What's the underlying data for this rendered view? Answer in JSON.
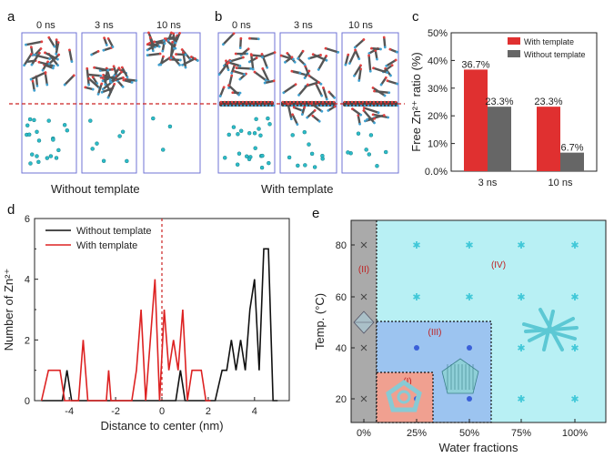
{
  "panel_a": {
    "label": "a",
    "times": [
      "0 ns",
      "3 ns",
      "10 ns"
    ],
    "caption": "Without template"
  },
  "panel_b": {
    "label": "b",
    "times": [
      "0 ns",
      "3 ns",
      "10 ns"
    ],
    "caption": "With template"
  },
  "panel_c": {
    "label": "c"
  },
  "panel_d": {
    "label": "d"
  },
  "panel_e": {
    "label": "e"
  },
  "chart_data": [
    {
      "id": "c",
      "type": "bar",
      "categories": [
        "3 ns",
        "10 ns"
      ],
      "series": [
        {
          "name": "With template",
          "color": "#e03030",
          "values": [
            36.7,
            23.3
          ],
          "labels": [
            "36.7%",
            "23.3%"
          ]
        },
        {
          "name": "Without template",
          "color": "#666666",
          "values": [
            23.3,
            6.7
          ],
          "labels": [
            "23.3%",
            "6.7%"
          ]
        }
      ],
      "ylabel": "Free Zn²⁺ ratio (%)",
      "ylim": [
        0,
        50
      ],
      "yticks": [
        "0.0%",
        "10%",
        "20%",
        "30%",
        "40%",
        "50%"
      ],
      "legend": "top-right"
    },
    {
      "id": "d",
      "type": "line",
      "xlabel": "Distance to center (nm)",
      "ylabel": "Number of Zn²⁺",
      "xlim": [
        -5.5,
        5.5
      ],
      "ylim": [
        0,
        6
      ],
      "xticks": [
        -4,
        -2,
        0,
        2,
        4
      ],
      "yticks": [
        0,
        2,
        4,
        6
      ],
      "legend": "top-left",
      "series": [
        {
          "name": "Without template",
          "color": "#111111",
          "x": [
            -5.2,
            -4.3,
            -4.1,
            -3.9,
            0.6,
            0.8,
            1.0,
            1.2,
            2.3,
            2.6,
            2.8,
            3.0,
            3.2,
            3.4,
            3.6,
            3.8,
            4.0,
            4.2,
            4.4,
            4.6,
            4.8,
            5.0
          ],
          "y": [
            0,
            0,
            1,
            0,
            0,
            1,
            0,
            0,
            0,
            1,
            1,
            2,
            1,
            2,
            1,
            3,
            4,
            1,
            5,
            5,
            0,
            0
          ]
        },
        {
          "name": "With template",
          "color": "#dd2222",
          "x": [
            -5.2,
            -4.9,
            -4.4,
            -4.2,
            -3.6,
            -3.4,
            -3.2,
            -2.4,
            -2.3,
            -2.2,
            -1.3,
            -1.1,
            -0.9,
            -0.7,
            -0.5,
            -0.3,
            -0.1,
            0.1,
            0.3,
            0.5,
            0.7,
            0.9,
            1.1,
            1.3,
            1.7,
            1.9,
            2.1
          ],
          "y": [
            0,
            1,
            1,
            0,
            0,
            2,
            0,
            0,
            1,
            0,
            0,
            1,
            3,
            0,
            2,
            4,
            0,
            3,
            1,
            2,
            1,
            3,
            0,
            1,
            1,
            0,
            0
          ]
        }
      ]
    }
  ],
  "panel_e_data": {
    "xlabel": "Water fractions",
    "ylabel": "Temp. (°C)",
    "xticks": [
      "0%",
      "25%",
      "50%",
      "75%",
      "100%"
    ],
    "yticks": [
      "20",
      "40",
      "60",
      "80"
    ],
    "regions": [
      "(I)",
      "(II)",
      "(III)",
      "(IV)"
    ],
    "region_colors": {
      "I": "#f0a090",
      "II": "#aaaaaa",
      "III": "#9cc4f0",
      "IV": "#b8f0f4"
    }
  }
}
